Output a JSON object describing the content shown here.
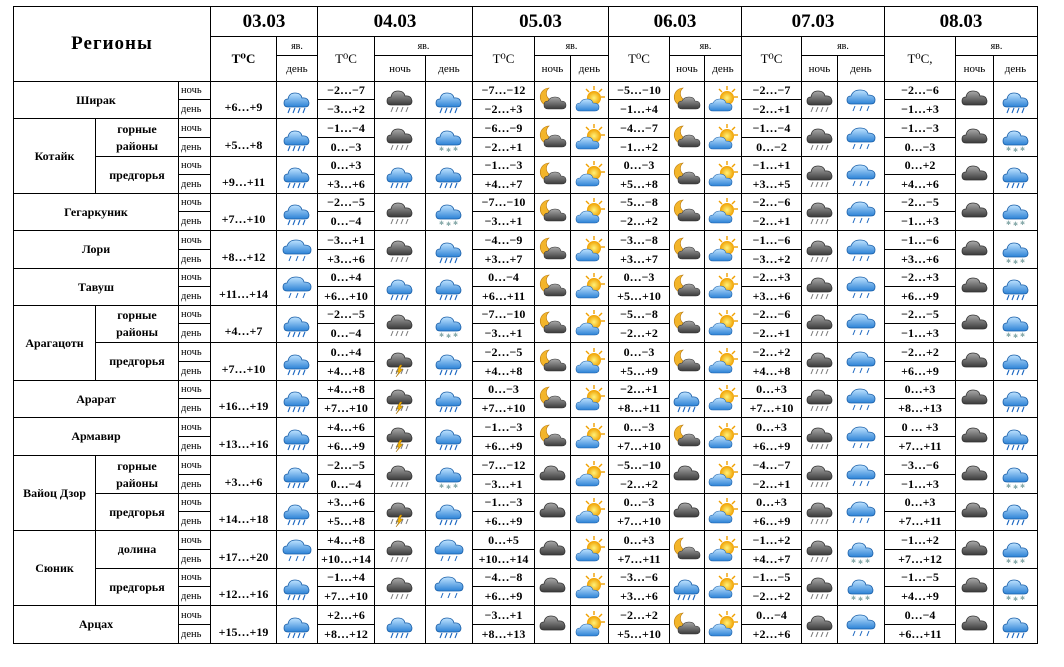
{
  "header": {
    "regions_title": "Регионы",
    "dates": [
      "03.03",
      "04.03",
      "05.03",
      "06.03",
      "07.03",
      "08.03"
    ],
    "temp_label": "T⁰C",
    "temp_label_last": "T⁰C,",
    "yav_label": "яв.",
    "night_label": "ночь",
    "day_label": "день"
  },
  "rows": [
    {
      "region": "Ширак",
      "sub": "",
      "d0": "+6…+9",
      "n1": "−2…−7",
      "d1": "−3…+2",
      "n2": "−7…−12",
      "d2": "−2…+3",
      "n3": "−5…−10",
      "d3": "−1…+4",
      "n4": "−2…−7",
      "d4": "−2…+1",
      "n5": "−2…−6",
      "d5": "−1…+3"
    },
    {
      "region": "Котайк",
      "sub": "горные районы",
      "d0": "+5…+8",
      "n1": "−1…−4",
      "d1": "0…−3",
      "n2": "−6…−9",
      "d2": "−2…+1",
      "n3": "−4…−7",
      "d3": "−1…+2",
      "n4": "−1…−4",
      "d4": "0…−2",
      "n5": "−1…−3",
      "d5": "0…−3"
    },
    {
      "region": "",
      "sub": "предгорья",
      "d0": "+9…+11",
      "n1": "0…+3",
      "d1": "+3…+6",
      "n2": "−1…−3",
      "d2": "+4…+7",
      "n3": "0…−3",
      "d3": "+5…+8",
      "n4": "−1…+1",
      "d4": "+3…+5",
      "n5": "0…+2",
      "d5": "+4…+6"
    },
    {
      "region": "Гегаркуник",
      "sub": "",
      "d0": "+7…+10",
      "n1": "−2…−5",
      "d1": "0…−4",
      "n2": "−7…−10",
      "d2": "−3…+1",
      "n3": "−5…−8",
      "d3": "−2…+2",
      "n4": "−2…−6",
      "d4": "−2…+1",
      "n5": "−2…−5",
      "d5": "−1…+3"
    },
    {
      "region": "Лори",
      "sub": "",
      "d0": "+8…+12",
      "n1": "−3…+1",
      "d1": "+3…+6",
      "n2": "−4…−9",
      "d2": "+3…+7",
      "n3": "−3…−8",
      "d3": "+3…+7",
      "n4": "−1…−6",
      "d4": "−3…+2",
      "n5": "−1…−6",
      "d5": "+3…+6"
    },
    {
      "region": "Тавуш",
      "sub": "",
      "d0": "+11…+14",
      "n1": "0…+4",
      "d1": "+6…+10",
      "n2": "0…−4",
      "d2": "+6…+11",
      "n3": "0…−3",
      "d3": "+5…+10",
      "n4": "−2…+3",
      "d4": "+3…+6",
      "n5": "−2…+3",
      "d5": "+6…+9"
    },
    {
      "region": "Арагацотн",
      "sub": "горные районы",
      "d0": "+4…+7",
      "n1": "−2…−5",
      "d1": "0…−4",
      "n2": "−7…−10",
      "d2": "−3…+1",
      "n3": "−5…−8",
      "d3": "−2…+2",
      "n4": "−2…−6",
      "d4": "−2…+1",
      "n5": "−2…−5",
      "d5": "−1…+3"
    },
    {
      "region": "",
      "sub": "предгорья",
      "d0": "+7…+10",
      "n1": "0…+4",
      "d1": "+4…+8",
      "n2": "−2…−5",
      "d2": "+4…+8",
      "n3": "0…−3",
      "d3": "+5…+9",
      "n4": "−2…+2",
      "d4": "+4…+8",
      "n5": "−2…+2",
      "d5": "+6…+9"
    },
    {
      "region": "Арарат",
      "sub": "",
      "d0": "+16…+19",
      "n1": "+4…+8",
      "d1": "+7…+10",
      "n2": "0…−3",
      "d2": "+7…+10",
      "n3": "−2…+1",
      "d3": "+8…+11",
      "n4": "0…+3",
      "d4": "+7…+10",
      "n5": "0…+3",
      "d5": "+8…+13"
    },
    {
      "region": "Армавир",
      "sub": "",
      "d0": "+13…+16",
      "n1": "+4…+6",
      "d1": "+6…+9",
      "n2": "−1…−3",
      "d2": "+6…+9",
      "n3": "0…−3",
      "d3": "+7…+10",
      "n4": "0…+3",
      "d4": "+6…+9",
      "n5": "0 … +3",
      "d5": "+7…+11"
    },
    {
      "region": "Вайоц Дзор",
      "sub": "горные районы",
      "d0": "+3…+6",
      "n1": "−2…−5",
      "d1": "0…−4",
      "n2": "−7…−12",
      "d2": "−3…+1",
      "n3": "−5…−10",
      "d3": "−2…+2",
      "n4": "−4…−7",
      "d4": "−2…+1",
      "n5": "−3…−6",
      "d5": "−1…+3"
    },
    {
      "region": "",
      "sub": "предгорья",
      "d0": "+14…+18",
      "n1": "+3…+6",
      "d1": "+5…+8",
      "n2": "−1…−3",
      "d2": "+6…+9",
      "n3": "0…−3",
      "d3": "+7…+10",
      "n4": "0…+3",
      "d4": "+6…+9",
      "n5": "0…+3",
      "d5": "+7…+11"
    },
    {
      "region": "Сюник",
      "sub": "долина",
      "d0": "+17…+20",
      "n1": "+4…+8",
      "d1": "+10…+14",
      "n2": "0…+5",
      "d2": "+10…+14",
      "n3": "0…+3",
      "d3": "+7…+11",
      "n4": "−1…+2",
      "d4": "+4…+7",
      "n5": "−1…+2",
      "d5": "+7…+12"
    },
    {
      "region": "",
      "sub": "предгорья",
      "d0": "+12…+16",
      "n1": "−1…+4",
      "d1": "+7…+10",
      "n2": "−4…−8",
      "d2": "+6…+9",
      "n3": "−3…−6",
      "d3": "+3…+6",
      "n4": "−1…−5",
      "d4": "−2…+2",
      "n5": "−1…−5",
      "d5": "+4…+9"
    },
    {
      "region": "Арцах",
      "sub": "",
      "d0": "+15…+19",
      "n1": "+2…+6",
      "d1": "+8…+12",
      "n2": "−3…+1",
      "d2": "+8…+13",
      "n3": "−2…+2",
      "d3": "+5…+10",
      "n4": "0…−4",
      "d4": "+2…+6",
      "n5": "0…−4",
      "d5": "+6…+11"
    }
  ]
}
